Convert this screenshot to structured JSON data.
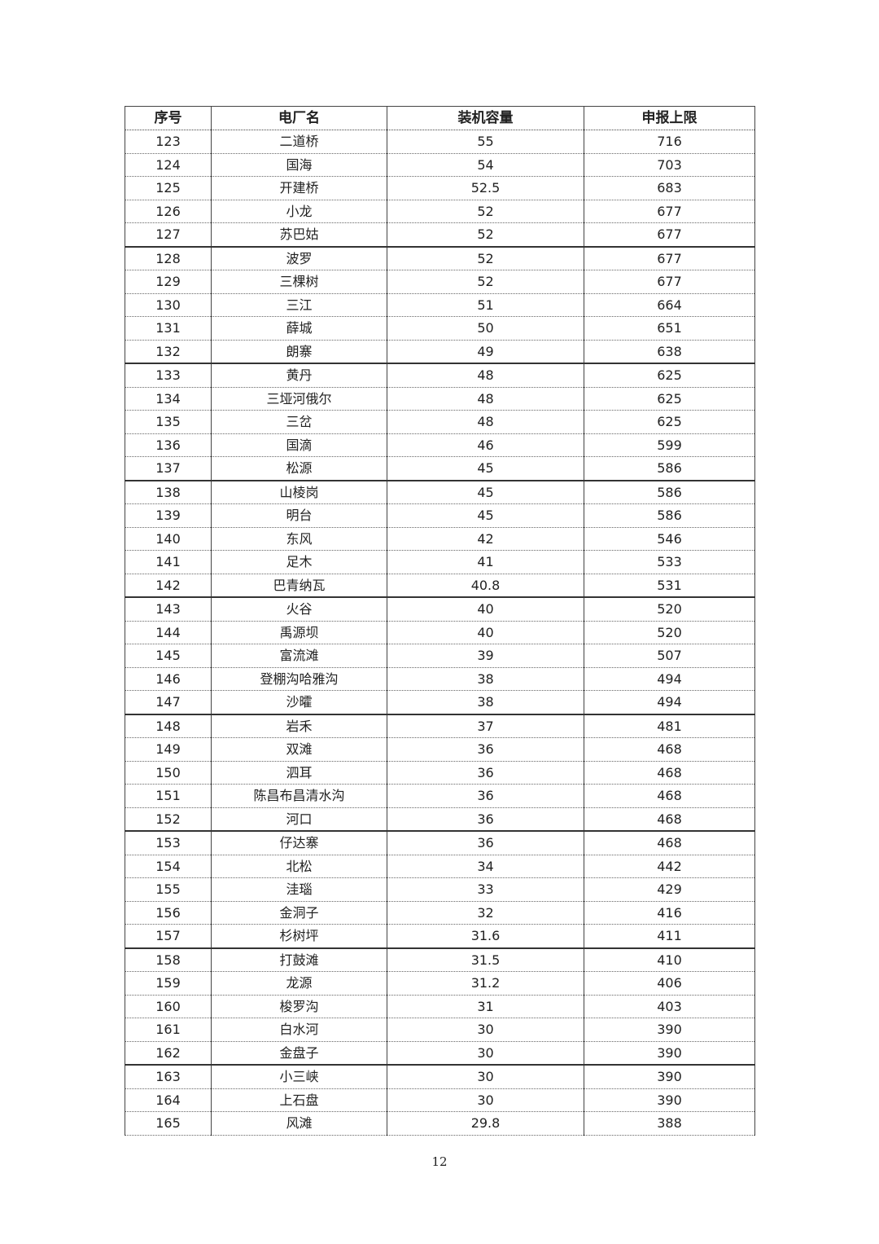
{
  "table": {
    "headers": [
      "序号",
      "电厂名",
      "装机容量",
      "申报上限"
    ],
    "rows": [
      [
        "123",
        "二道桥",
        "55",
        "716"
      ],
      [
        "124",
        "国海",
        "54",
        "703"
      ],
      [
        "125",
        "开建桥",
        "52.5",
        "683"
      ],
      [
        "126",
        "小龙",
        "52",
        "677"
      ],
      [
        "127",
        "苏巴姑",
        "52",
        "677"
      ],
      [
        "128",
        "波罗",
        "52",
        "677"
      ],
      [
        "129",
        "三棵树",
        "52",
        "677"
      ],
      [
        "130",
        "三江",
        "51",
        "664"
      ],
      [
        "131",
        "薛城",
        "50",
        "651"
      ],
      [
        "132",
        "朗寨",
        "49",
        "638"
      ],
      [
        "133",
        "黄丹",
        "48",
        "625"
      ],
      [
        "134",
        "三垭河俄尔",
        "48",
        "625"
      ],
      [
        "135",
        "三岔",
        "48",
        "625"
      ],
      [
        "136",
        "国滴",
        "46",
        "599"
      ],
      [
        "137",
        "松源",
        "45",
        "586"
      ],
      [
        "138",
        "山棱岗",
        "45",
        "586"
      ],
      [
        "139",
        "明台",
        "45",
        "586"
      ],
      [
        "140",
        "东风",
        "42",
        "546"
      ],
      [
        "141",
        "足木",
        "41",
        "533"
      ],
      [
        "142",
        "巴青纳瓦",
        "40.8",
        "531"
      ],
      [
        "143",
        "火谷",
        "40",
        "520"
      ],
      [
        "144",
        "禹源坝",
        "40",
        "520"
      ],
      [
        "145",
        "富流滩",
        "39",
        "507"
      ],
      [
        "146",
        "登棚沟哈雅沟",
        "38",
        "494"
      ],
      [
        "147",
        "沙曤",
        "38",
        "494"
      ],
      [
        "148",
        "岩禾",
        "37",
        "481"
      ],
      [
        "149",
        "双滩",
        "36",
        "468"
      ],
      [
        "150",
        "泗耳",
        "36",
        "468"
      ],
      [
        "151",
        "陈昌布昌清水沟",
        "36",
        "468"
      ],
      [
        "152",
        "河口",
        "36",
        "468"
      ],
      [
        "153",
        "仔达寨",
        "36",
        "468"
      ],
      [
        "154",
        "北松",
        "34",
        "442"
      ],
      [
        "155",
        "洼瑙",
        "33",
        "429"
      ],
      [
        "156",
        "金洞子",
        "32",
        "416"
      ],
      [
        "157",
        "杉树坪",
        "31.6",
        "411"
      ],
      [
        "158",
        "打鼓滩",
        "31.5",
        "410"
      ],
      [
        "159",
        "龙源",
        "31.2",
        "406"
      ],
      [
        "160",
        "梭罗沟",
        "31",
        "403"
      ],
      [
        "161",
        "白水河",
        "30",
        "390"
      ],
      [
        "162",
        "金盘子",
        "30",
        "390"
      ],
      [
        "163",
        "小三峡",
        "30",
        "390"
      ],
      [
        "164",
        "上石盘",
        "30",
        "390"
      ],
      [
        "165",
        "风滩",
        "29.8",
        "388"
      ]
    ]
  },
  "footer": {
    "page_number": "12"
  }
}
